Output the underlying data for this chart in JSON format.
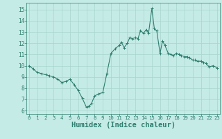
{
  "x": [
    0,
    0.5,
    1,
    1.5,
    2,
    2.5,
    3,
    3.5,
    4,
    4.5,
    5,
    5.5,
    6,
    6.5,
    7,
    7.3,
    7.6,
    8,
    8.5,
    9,
    9.5,
    10,
    10.5,
    11,
    11.3,
    11.6,
    12,
    12.3,
    12.6,
    13,
    13.3,
    13.6,
    14,
    14.3,
    14.6,
    15,
    15.3,
    15.6,
    16,
    16.3,
    16.6,
    17,
    17.3,
    17.6,
    18,
    18.3,
    18.6,
    19,
    19.3,
    19.6,
    20,
    20.3,
    20.6,
    21,
    21.3,
    21.6,
    22,
    22.5,
    23
  ],
  "y": [
    10.0,
    9.7,
    9.4,
    9.3,
    9.2,
    9.1,
    9.0,
    8.8,
    8.5,
    8.6,
    8.8,
    8.3,
    7.8,
    7.1,
    6.3,
    6.4,
    6.6,
    7.3,
    7.5,
    7.6,
    9.3,
    11.1,
    11.5,
    11.8,
    12.1,
    11.6,
    12.0,
    12.5,
    12.4,
    12.5,
    12.4,
    13.1,
    12.9,
    13.2,
    12.9,
    15.1,
    13.3,
    13.1,
    11.1,
    12.2,
    11.8,
    11.1,
    11.0,
    10.9,
    11.1,
    11.0,
    10.9,
    10.8,
    10.8,
    10.7,
    10.5,
    10.5,
    10.4,
    10.4,
    10.3,
    10.2,
    9.9,
    10.0,
    9.8
  ],
  "line_color": "#2e7d6e",
  "marker": "+",
  "marker_size": 3,
  "bg_color": "#c5ebe6",
  "grid_color": "#a8d5cf",
  "tick_color": "#2e7d6e",
  "xlabel": "Humidex (Indice chaleur)",
  "xlabel_fontsize": 7.5,
  "ylabel_ticks": [
    6,
    7,
    8,
    9,
    10,
    11,
    12,
    13,
    14,
    15
  ],
  "xlim": [
    -0.3,
    23.3
  ],
  "ylim": [
    5.7,
    15.6
  ],
  "xtick_labels": [
    "0",
    "1",
    "2",
    "3",
    "4",
    "5",
    "6",
    "7",
    "8",
    "9",
    "10",
    "11",
    "12",
    "13",
    "14",
    "15",
    "16",
    "17",
    "18",
    "19",
    "20",
    "21",
    "22",
    "23"
  ],
  "xtick_positions": [
    0,
    1,
    2,
    3,
    4,
    5,
    6,
    7,
    8,
    9,
    10,
    11,
    12,
    13,
    14,
    15,
    16,
    17,
    18,
    19,
    20,
    21,
    22,
    23
  ]
}
